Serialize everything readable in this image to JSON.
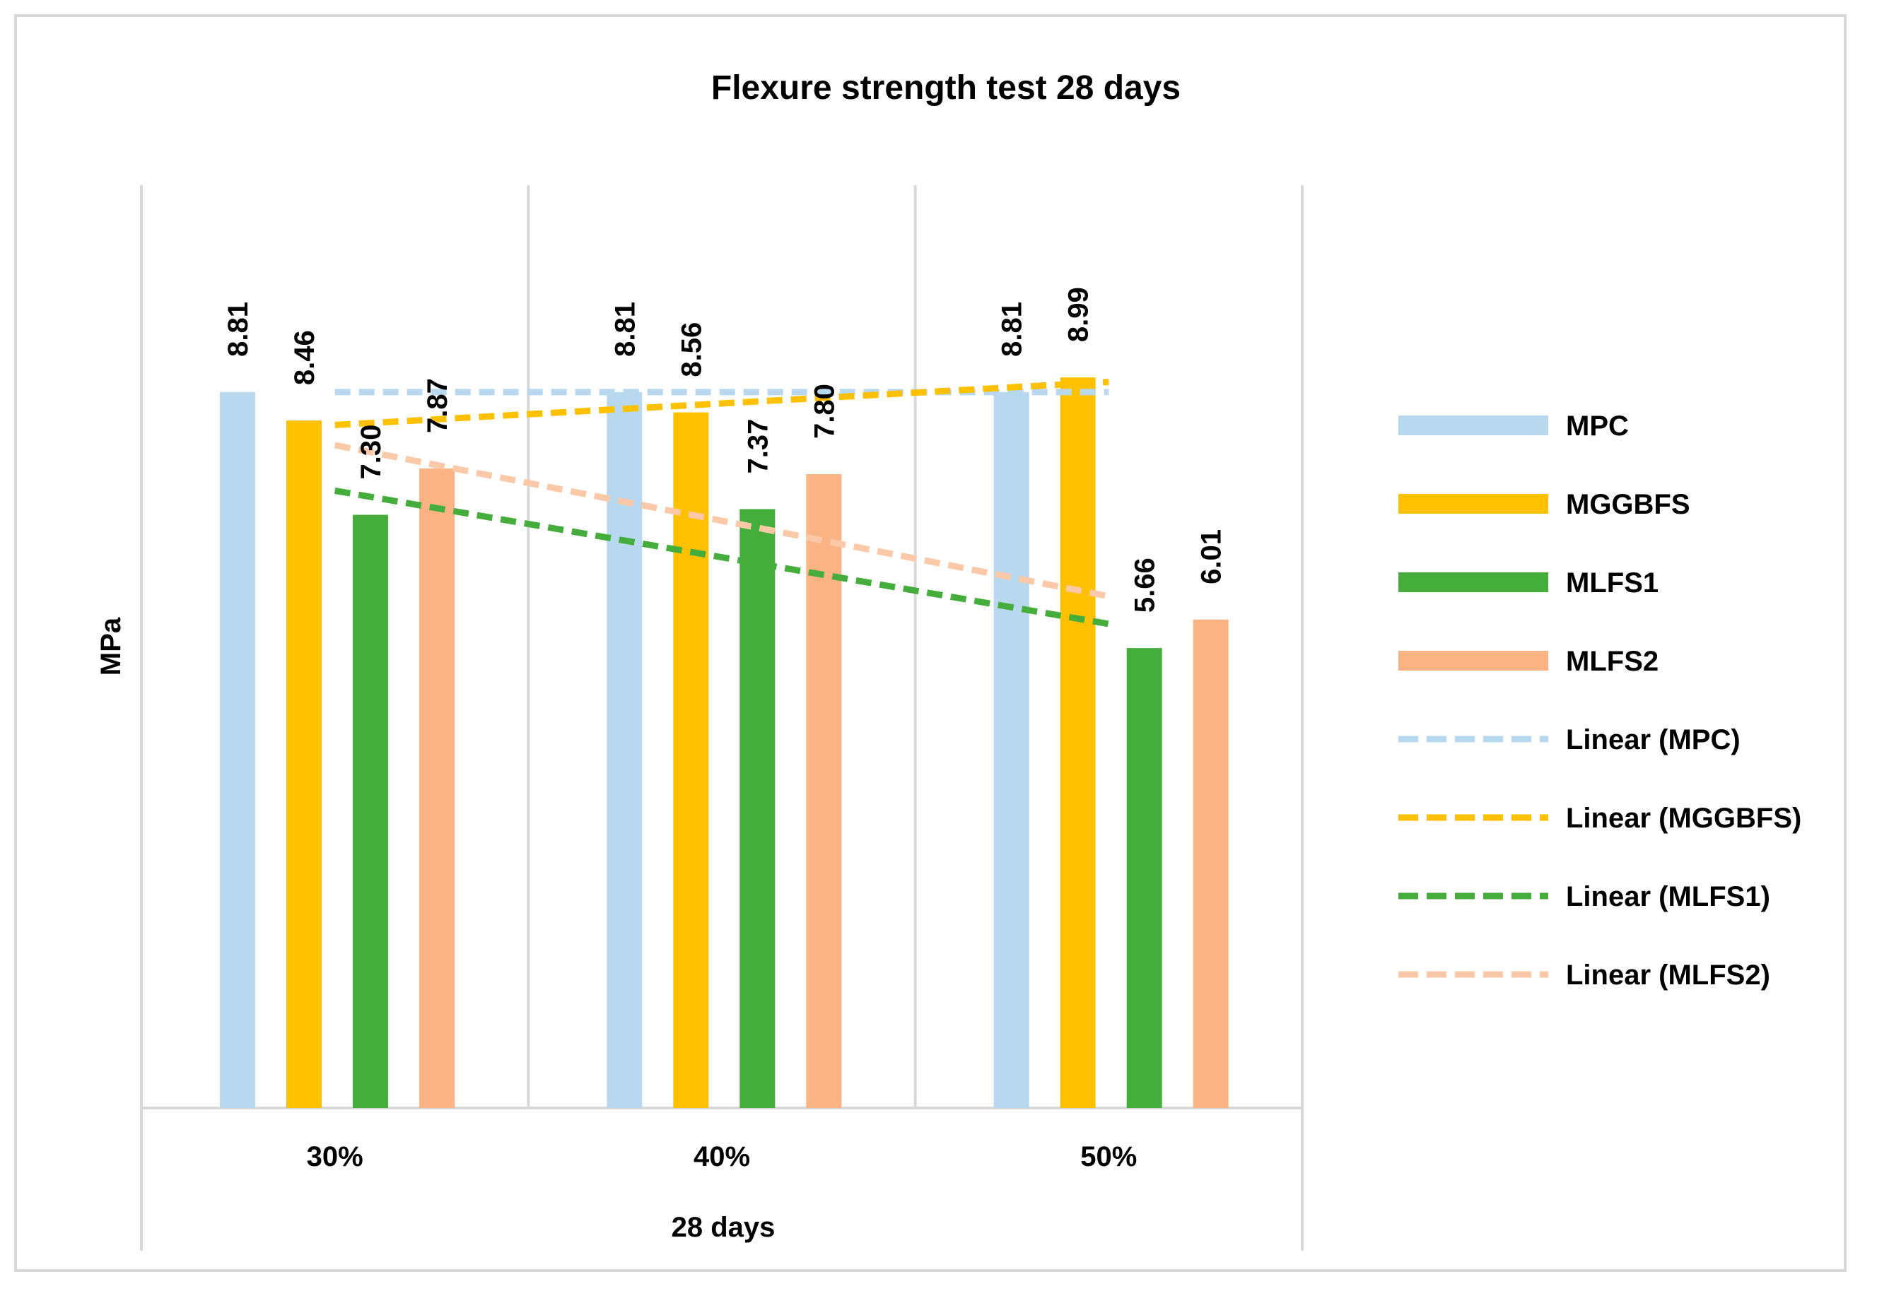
{
  "chart_data": {
    "type": "bar",
    "title": "Flexure strength test 28 days",
    "xlabel": "28 days",
    "ylabel": "MPa",
    "categories": [
      "30%",
      "40%",
      "50%"
    ],
    "ylim": [
      0,
      10
    ],
    "grid": "vertical separators only",
    "legend_position": "right",
    "series": [
      {
        "name": "MPC",
        "values": [
          8.81,
          8.81,
          8.81
        ],
        "labels": [
          "8.81",
          "8.81",
          "8.81"
        ],
        "color": "#b7d8ee"
      },
      {
        "name": "MGGBFS",
        "values": [
          8.46,
          8.56,
          8.99
        ],
        "labels": [
          "8.46",
          "8.56",
          "8.99"
        ],
        "color": "#ffc000"
      },
      {
        "name": "MLFS1",
        "values": [
          7.3,
          7.37,
          5.66
        ],
        "labels": [
          "7.30",
          "7.37",
          "5.66"
        ],
        "color": "#44ad3c"
      },
      {
        "name": "MLFS2",
        "values": [
          7.87,
          7.8,
          6.01
        ],
        "labels": [
          "7.87",
          "7.80",
          "6.01"
        ],
        "color": "#fbb383"
      }
    ],
    "trendlines": [
      {
        "name": "Linear (MPC)",
        "color": "#b7d8ee"
      },
      {
        "name": "Linear (MGGBFS)",
        "color": "#ffc000"
      },
      {
        "name": "Linear (MLFS1)",
        "color": "#44ad3c"
      },
      {
        "name": "Linear (MLFS2)",
        "color": "#fcc9a8"
      }
    ]
  }
}
